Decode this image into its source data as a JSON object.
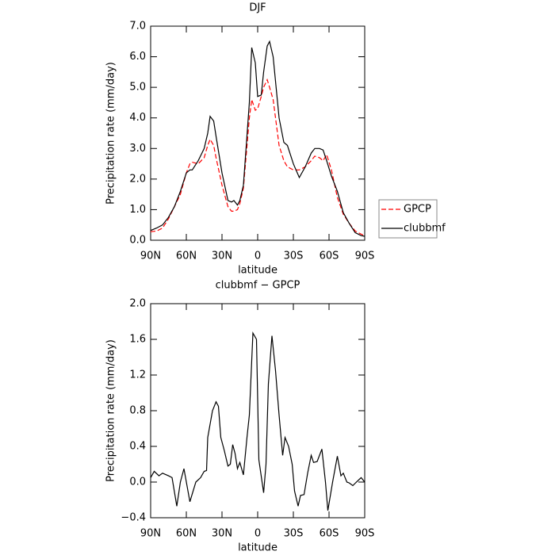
{
  "chart_data": [
    {
      "type": "line",
      "title": "DJF",
      "x_label": "latitude",
      "y_label": "Precipitation rate (mm/day)",
      "x": [
        90,
        85,
        80,
        75,
        70,
        65,
        60,
        57,
        55,
        50,
        45,
        42,
        40,
        37,
        35,
        30,
        25,
        22,
        20,
        17,
        15,
        12,
        7,
        5,
        2,
        0,
        -3,
        -5,
        -8,
        -10,
        -13,
        -15,
        -18,
        -22,
        -25,
        -30,
        -35,
        -40,
        -45,
        -48,
        -52,
        -55,
        -58,
        -62,
        -67,
        -72,
        -77,
        -82,
        -87,
        -90
      ],
      "xlim": [
        90,
        -90
      ],
      "xticks": [
        {
          "value": 90,
          "label": "90N"
        },
        {
          "value": 60,
          "label": "60N"
        },
        {
          "value": 30,
          "label": "30N"
        },
        0,
        {
          "value": -30,
          "label": "30S"
        },
        {
          "value": -60,
          "label": "60S"
        },
        {
          "value": -90,
          "label": "90S"
        }
      ],
      "ylim": [
        0,
        7
      ],
      "yticks": [
        {
          "value": 0,
          "label": "0.0"
        },
        {
          "value": 1,
          "label": "1.0"
        },
        {
          "value": 2,
          "label": "2.0"
        },
        {
          "value": 3,
          "label": "3.0"
        },
        {
          "value": 4,
          "label": "4.0"
        },
        {
          "value": 5,
          "label": "5.0"
        },
        {
          "value": 6,
          "label": "6.0"
        },
        {
          "value": 7,
          "label": "7.0"
        }
      ],
      "legend": "right",
      "series": [
        {
          "name": "GPCP",
          "color": "#ff0000",
          "dash": "dashed",
          "values": [
            0.28,
            0.3,
            0.4,
            0.7,
            1.1,
            1.5,
            2.2,
            2.5,
            2.55,
            2.5,
            2.7,
            3.1,
            3.3,
            3.1,
            2.7,
            1.8,
            1.1,
            0.95,
            0.95,
            1.0,
            1.2,
            1.7,
            4.0,
            4.6,
            4.25,
            4.3,
            4.7,
            5.0,
            5.25,
            5.0,
            4.6,
            4.0,
            3.1,
            2.6,
            2.4,
            2.3,
            2.3,
            2.4,
            2.6,
            2.75,
            2.7,
            2.6,
            2.8,
            2.3,
            1.4,
            0.85,
            0.55,
            0.3,
            0.2,
            0.15
          ]
        },
        {
          "name": "clubbmf",
          "color": "#000000",
          "dash": "solid",
          "values": [
            0.32,
            0.4,
            0.5,
            0.75,
            1.1,
            1.6,
            2.2,
            2.3,
            2.3,
            2.6,
            3.0,
            3.5,
            4.05,
            3.9,
            3.4,
            2.2,
            1.3,
            1.25,
            1.3,
            1.15,
            1.3,
            1.8,
            4.5,
            6.3,
            5.8,
            4.7,
            4.75,
            5.5,
            6.35,
            6.5,
            6.0,
            5.2,
            4.0,
            3.2,
            3.1,
            2.5,
            2.05,
            2.4,
            2.85,
            3.0,
            3.0,
            2.95,
            2.6,
            2.1,
            1.6,
            0.9,
            0.55,
            0.25,
            0.15,
            0.13
          ]
        }
      ]
    },
    {
      "type": "line",
      "title": "clubbmf − GPCP",
      "x_label": "latitude",
      "y_label": "Precipitation rate (mm/day)",
      "x": [
        90,
        87,
        83,
        80,
        75,
        72,
        68,
        65,
        62,
        57,
        52,
        48,
        45,
        43,
        42,
        38,
        35,
        33,
        31,
        28,
        25,
        23,
        21,
        19,
        17,
        15,
        12,
        9,
        7,
        4,
        1,
        -1,
        -5,
        -7,
        -9,
        -12,
        -15,
        -18,
        -21,
        -23,
        -26,
        -29,
        -31,
        -34,
        -36,
        -39,
        -42,
        -45,
        -47,
        -50,
        -54,
        -57,
        -59,
        -63,
        -67,
        -70,
        -72,
        -75,
        -77,
        -80,
        -83,
        -87,
        -90
      ],
      "xlim": [
        90,
        -90
      ],
      "xticks": [
        {
          "value": 90,
          "label": "90N"
        },
        {
          "value": 60,
          "label": "60N"
        },
        {
          "value": 30,
          "label": "30N"
        },
        0,
        {
          "value": -30,
          "label": "30S"
        },
        {
          "value": -60,
          "label": "60S"
        },
        {
          "value": -90,
          "label": "90S"
        }
      ],
      "ylim": [
        -0.4,
        2.0
      ],
      "yticks": [
        {
          "value": -0.4,
          "label": "−0.4"
        },
        {
          "value": 0,
          "label": "0.0"
        },
        0.4,
        0.8,
        1.2,
        1.6,
        {
          "value": 2,
          "label": "2.0"
        }
      ],
      "series": [
        {
          "color": "#000000",
          "dash": "solid",
          "values": [
            0.05,
            0.12,
            0.07,
            0.1,
            0.07,
            0.05,
            -0.27,
            0.0,
            0.15,
            -0.22,
            0.0,
            0.05,
            0.12,
            0.13,
            0.5,
            0.8,
            0.9,
            0.85,
            0.5,
            0.35,
            0.18,
            0.2,
            0.42,
            0.32,
            0.15,
            0.22,
            0.08,
            0.5,
            0.75,
            1.67,
            1.6,
            0.25,
            -0.12,
            0.2,
            1.1,
            1.64,
            1.25,
            0.75,
            0.3,
            0.5,
            0.4,
            0.2,
            -0.1,
            -0.27,
            -0.15,
            -0.14,
            0.1,
            0.3,
            0.22,
            0.23,
            0.37,
            0.0,
            -0.32,
            0.0,
            0.29,
            0.07,
            0.1,
            0.0,
            -0.01,
            -0.04,
            0.0,
            0.05,
            0.0
          ]
        }
      ]
    }
  ]
}
